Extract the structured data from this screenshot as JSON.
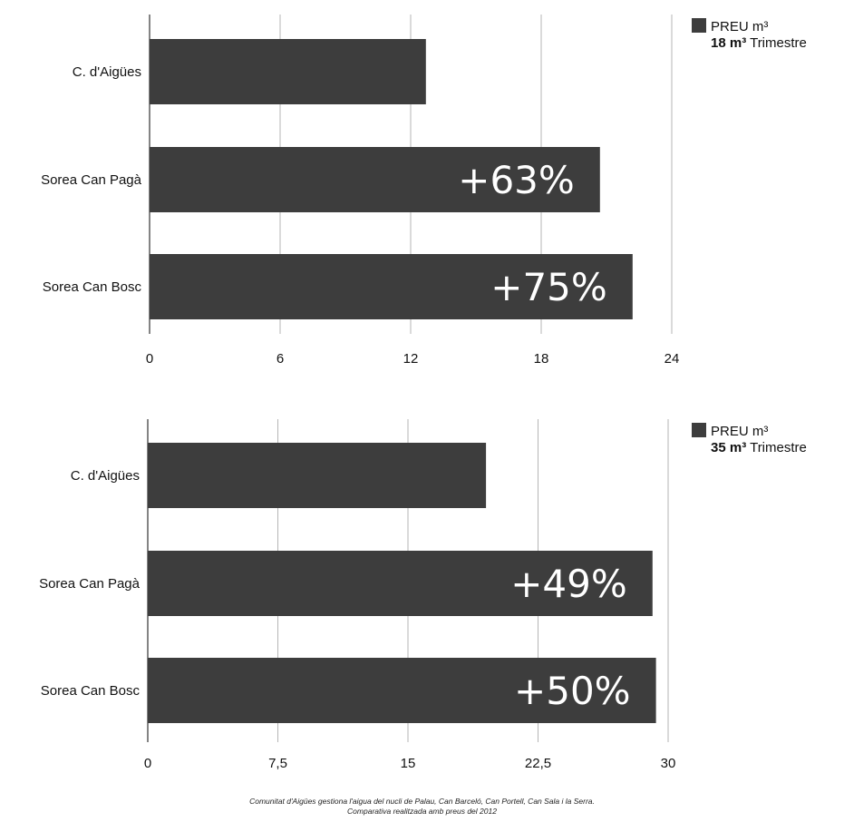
{
  "chart_data": [
    {
      "type": "bar",
      "orientation": "horizontal",
      "categories": [
        "C. d'Aigües",
        "Sorea Can Pagà",
        "Sorea Can Bosc"
      ],
      "values": [
        12.7,
        20.7,
        22.2
      ],
      "bar_labels": [
        "",
        "+63%",
        "+75%"
      ],
      "xlim": [
        0,
        24
      ],
      "xticks": [
        "0",
        "6",
        "12",
        "18",
        "24"
      ],
      "legend": {
        "label": "PREU m³",
        "volume": "18 m³",
        "period": "Trimestre",
        "position": "top-right"
      },
      "bar_color": "#3d3d3d",
      "grid": true
    },
    {
      "type": "bar",
      "orientation": "horizontal",
      "categories": [
        "C. d'Aigües",
        "Sorea Can Pagà",
        "Sorea Can Bosc"
      ],
      "values": [
        19.5,
        29.1,
        29.3
      ],
      "bar_labels": [
        "",
        "+49%",
        "+50%"
      ],
      "xlim": [
        0,
        30
      ],
      "xticks": [
        "0",
        "7,5",
        "15",
        "22,5",
        "30"
      ],
      "legend": {
        "label": "PREU m³",
        "volume": "35 m³",
        "period": "Trimestre",
        "position": "top-right"
      },
      "bar_color": "#3d3d3d",
      "grid": true
    }
  ],
  "footer": {
    "line1": "Comunitat d'Aigües gestiona l'aigua del nucli de Palau, Can Barceló, Can Portell, Can Sala i la Serra.",
    "line2": "Comparativa realitzada amb preus del 2012"
  }
}
